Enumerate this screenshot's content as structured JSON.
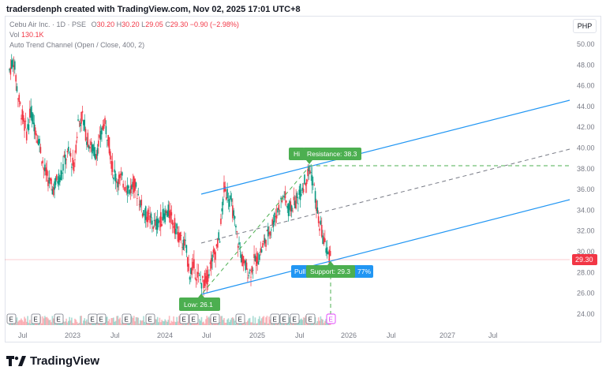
{
  "watermark": "tradersdenph created with TradingView.com, Nov 02, 2025 17:01 UTC+8",
  "legend": {
    "symbol": "Cebu Air Inc. · 1D · PSE",
    "o_label": "O",
    "o": "30.20",
    "h_label": "H",
    "h": "30.20",
    "l_label": "L",
    "l": "29.05",
    "c_label": "C",
    "c": "29.30",
    "change": "−0.90 (−2.98%)",
    "vol_label": "Vol",
    "vol": "130.1K",
    "indicator": "Auto Trend Channel (Open / Close, 400, 2)"
  },
  "currency": "PHP",
  "logo_text": "TradingView",
  "colors": {
    "up": "#089981",
    "down": "#f23645",
    "channel": "#2196f3",
    "label_green": "#4caf50",
    "label_blue": "#2196f3",
    "price_badge": "#f23645"
  },
  "chart_data": {
    "type": "line",
    "series": [
      {
        "values": [
          [
            "2022-06-01",
            47.5
          ],
          [
            "2022-06-15",
            48.5
          ],
          [
            "2022-07-01",
            45.0
          ],
          [
            "2022-07-15",
            43.0
          ],
          [
            "2022-08-01",
            41.5
          ],
          [
            "2022-08-15",
            43.5
          ],
          [
            "2022-09-01",
            42.0
          ],
          [
            "2022-09-15",
            40.5
          ],
          [
            "2022-10-01",
            38.0
          ],
          [
            "2022-10-15",
            37.0
          ],
          [
            "2022-11-01",
            36.0
          ],
          [
            "2022-11-15",
            36.8
          ],
          [
            "2022-12-01",
            37.5
          ],
          [
            "2022-12-15",
            39.0
          ],
          [
            "2023-01-01",
            39.5
          ],
          [
            "2023-01-15",
            38.0
          ],
          [
            "2023-02-01",
            42.5
          ],
          [
            "2023-02-15",
            43.0
          ],
          [
            "2023-03-01",
            41.0
          ],
          [
            "2023-03-15",
            40.0
          ],
          [
            "2023-04-01",
            39.5
          ],
          [
            "2023-04-15",
            40.5
          ],
          [
            "2023-05-01",
            42.5
          ],
          [
            "2023-05-15",
            41.0
          ],
          [
            "2023-06-01",
            38.0
          ],
          [
            "2023-06-15",
            37.0
          ],
          [
            "2023-07-01",
            37.0
          ],
          [
            "2023-07-15",
            36.5
          ],
          [
            "2023-08-01",
            36.0
          ],
          [
            "2023-08-15",
            36.5
          ],
          [
            "2023-09-01",
            35.5
          ],
          [
            "2023-09-15",
            34.0
          ],
          [
            "2023-10-01",
            33.5
          ],
          [
            "2023-10-15",
            33.0
          ],
          [
            "2023-11-01",
            32.5
          ],
          [
            "2023-11-15",
            33.0
          ],
          [
            "2023-12-01",
            33.5
          ],
          [
            "2023-12-15",
            33.8
          ],
          [
            "2024-01-01",
            33.0
          ],
          [
            "2024-01-15",
            32.0
          ],
          [
            "2024-02-01",
            31.0
          ],
          [
            "2024-02-15",
            30.5
          ],
          [
            "2024-03-01",
            28.0
          ],
          [
            "2024-03-15",
            28.5
          ],
          [
            "2024-04-01",
            27.5
          ],
          [
            "2024-04-15",
            27.0
          ],
          [
            "2024-05-01",
            27.5
          ],
          [
            "2024-05-15",
            29.0
          ],
          [
            "2024-06-01",
            30.0
          ],
          [
            "2024-06-15",
            31.5
          ],
          [
            "2024-07-01",
            36.0
          ],
          [
            "2024-07-15",
            35.5
          ],
          [
            "2024-08-01",
            34.0
          ],
          [
            "2024-08-15",
            31.5
          ],
          [
            "2024-09-01",
            29.5
          ],
          [
            "2024-09-15",
            28.5
          ],
          [
            "2024-10-01",
            28.0
          ],
          [
            "2024-10-15",
            29.0
          ],
          [
            "2024-11-01",
            29.5
          ],
          [
            "2024-11-15",
            30.5
          ],
          [
            "2024-12-01",
            31.5
          ],
          [
            "2024-12-15",
            32.5
          ],
          [
            "2025-01-01",
            33.5
          ],
          [
            "2025-01-15",
            34.5
          ],
          [
            "2025-02-01",
            35.5
          ],
          [
            "2025-02-15",
            34.0
          ],
          [
            "2025-03-01",
            34.5
          ],
          [
            "2025-03-15",
            35.0
          ],
          [
            "2025-04-01",
            36.0
          ],
          [
            "2025-04-15",
            37.0
          ],
          [
            "2025-05-01",
            38.0
          ],
          [
            "2025-05-15",
            36.0
          ],
          [
            "2025-06-01",
            33.0
          ],
          [
            "2025-06-15",
            31.5
          ],
          [
            "2025-07-01",
            30.0
          ],
          [
            "2025-07-15",
            29.3
          ]
        ]
      }
    ],
    "x_ticks": [
      "Jul",
      "2023",
      "Jul",
      "2024",
      "Jul",
      "2025",
      "Jul",
      "2026",
      "Jul",
      "2027",
      "Jul"
    ],
    "y_ticks": [
      "50.00",
      "48.00",
      "46.00",
      "44.00",
      "42.00",
      "40.00",
      "38.00",
      "36.00",
      "34.00",
      "32.00",
      "30.00",
      "28.00",
      "26.00",
      "24.00"
    ],
    "ylim": [
      23.5,
      51.5
    ],
    "current_price": "29.30",
    "labels": {
      "high": "Hi",
      "resistance": "Resistance: 38.3",
      "low": "Low: 26.1",
      "support": "Support: 29.3",
      "pull": "Pull",
      "pct": "77%"
    },
    "earnings_marker": "E",
    "grid": false,
    "legend_position": "top-left"
  }
}
